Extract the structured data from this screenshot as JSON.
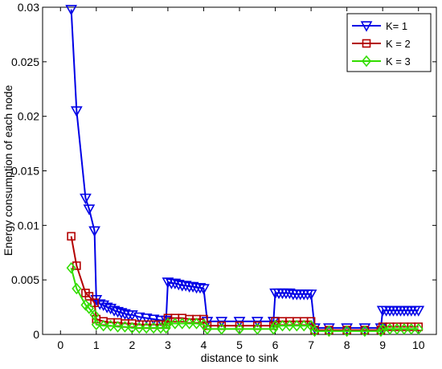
{
  "chart_data": {
    "type": "line",
    "title": "",
    "xlabel": "distance to sink",
    "ylabel": "Energy consumption of each node",
    "xlim": [
      -0.5,
      10.5
    ],
    "ylim": [
      0,
      0.03
    ],
    "x_ticks": [
      0,
      1,
      2,
      3,
      4,
      5,
      6,
      7,
      8,
      9,
      10
    ],
    "y_ticks": [
      0,
      0.005,
      0.01,
      0.015,
      0.02,
      0.025,
      0.03
    ],
    "x_tick_labels": [
      "0",
      "1",
      "2",
      "3",
      "4",
      "5",
      "6",
      "7",
      "8",
      "9",
      "10"
    ],
    "y_tick_labels": [
      "0",
      "0.005",
      "0.01",
      "0.015",
      "0.02",
      "0.025",
      "0.03"
    ],
    "grid": false,
    "legend_position": "top-right",
    "series": [
      {
        "name": "K= 1",
        "color": "#0000e6",
        "marker": "triangle-down",
        "x": [
          0.3,
          0.45,
          0.7,
          0.8,
          0.95,
          1.0,
          1.1,
          1.2,
          1.3,
          1.4,
          1.5,
          1.6,
          1.7,
          1.8,
          1.9,
          2.0,
          2.2,
          2.4,
          2.6,
          2.8,
          2.95,
          3.0,
          3.1,
          3.2,
          3.3,
          3.4,
          3.5,
          3.6,
          3.7,
          3.8,
          3.9,
          4.0,
          4.1,
          4.5,
          5.0,
          5.5,
          5.95,
          6.0,
          6.1,
          6.2,
          6.3,
          6.4,
          6.5,
          6.6,
          6.7,
          6.8,
          6.9,
          7.0,
          7.1,
          7.5,
          8.0,
          8.5,
          8.95,
          9.0,
          9.1,
          9.2,
          9.3,
          9.4,
          9.5,
          9.6,
          9.7,
          9.8,
          9.9,
          10.0
        ],
        "y": [
          0.0298,
          0.0205,
          0.0125,
          0.0115,
          0.0095,
          0.0032,
          0.0028,
          0.0027,
          0.0025,
          0.0024,
          0.0022,
          0.0021,
          0.002,
          0.0019,
          0.0018,
          0.0018,
          0.0016,
          0.0015,
          0.0014,
          0.0013,
          0.0013,
          0.0048,
          0.0047,
          0.0047,
          0.0046,
          0.0045,
          0.0045,
          0.0044,
          0.0044,
          0.0043,
          0.0043,
          0.0042,
          0.0012,
          0.0012,
          0.0012,
          0.0012,
          0.0012,
          0.0038,
          0.0038,
          0.0038,
          0.0038,
          0.0038,
          0.0037,
          0.0037,
          0.0037,
          0.0037,
          0.0037,
          0.0037,
          0.0006,
          0.0006,
          0.0006,
          0.0006,
          0.0006,
          0.0022,
          0.0022,
          0.0022,
          0.0022,
          0.0022,
          0.0022,
          0.0022,
          0.0022,
          0.0022,
          0.0022,
          0.0022
        ]
      },
      {
        "name": "K = 2",
        "color": "#b30000",
        "marker": "square",
        "x": [
          0.3,
          0.45,
          0.7,
          0.8,
          0.95,
          1.0,
          1.2,
          1.4,
          1.6,
          1.8,
          2.0,
          2.2,
          2.4,
          2.6,
          2.8,
          2.95,
          3.0,
          3.2,
          3.4,
          3.6,
          3.8,
          4.0,
          4.1,
          4.5,
          5.0,
          5.5,
          5.95,
          6.0,
          6.2,
          6.4,
          6.6,
          6.8,
          7.0,
          7.1,
          7.5,
          8.0,
          8.5,
          8.95,
          9.0,
          9.2,
          9.4,
          9.6,
          9.8,
          10.0
        ],
        "y": [
          0.009,
          0.0063,
          0.0038,
          0.0035,
          0.0029,
          0.0014,
          0.0012,
          0.0011,
          0.0011,
          0.001,
          0.001,
          0.0009,
          0.0009,
          0.0009,
          0.0009,
          0.0009,
          0.0015,
          0.0015,
          0.0015,
          0.0014,
          0.0014,
          0.0014,
          0.0008,
          0.0008,
          0.0008,
          0.0008,
          0.0008,
          0.0012,
          0.0012,
          0.0012,
          0.0012,
          0.0012,
          0.0012,
          0.0004,
          0.0004,
          0.0004,
          0.0004,
          0.0004,
          0.0007,
          0.0007,
          0.0007,
          0.0007,
          0.0007,
          0.0007
        ]
      },
      {
        "name": "K = 3",
        "color": "#33dd00",
        "marker": "diamond",
        "x": [
          0.3,
          0.45,
          0.7,
          0.8,
          0.95,
          1.0,
          1.2,
          1.4,
          1.6,
          1.8,
          2.0,
          2.2,
          2.4,
          2.6,
          2.8,
          2.95,
          3.0,
          3.2,
          3.4,
          3.6,
          3.8,
          4.0,
          4.1,
          4.5,
          5.0,
          5.5,
          5.95,
          6.0,
          6.2,
          6.4,
          6.6,
          6.8,
          7.0,
          7.1,
          7.5,
          8.0,
          8.5,
          8.95,
          9.0,
          9.2,
          9.4,
          9.6,
          9.8,
          10.0
        ],
        "y": [
          0.0061,
          0.0042,
          0.0027,
          0.0024,
          0.0018,
          0.0009,
          0.0008,
          0.0008,
          0.0007,
          0.0007,
          0.0006,
          0.0006,
          0.0006,
          0.0006,
          0.0006,
          0.0006,
          0.001,
          0.001,
          0.001,
          0.001,
          0.001,
          0.0009,
          0.0005,
          0.0005,
          0.0005,
          0.0005,
          0.0005,
          0.0008,
          0.0008,
          0.0008,
          0.0008,
          0.0008,
          0.0008,
          0.0003,
          0.0003,
          0.0003,
          0.0003,
          0.0003,
          0.0005,
          0.0005,
          0.0005,
          0.0005,
          0.0005,
          0.0005
        ]
      }
    ]
  }
}
